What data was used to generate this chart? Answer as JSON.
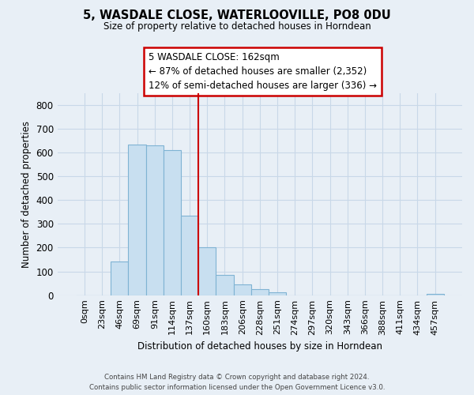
{
  "title": "5, WASDALE CLOSE, WATERLOOVILLE, PO8 0DU",
  "subtitle": "Size of property relative to detached houses in Horndean",
  "xlabel": "Distribution of detached houses by size in Horndean",
  "ylabel": "Number of detached properties",
  "bar_labels": [
    "0sqm",
    "23sqm",
    "46sqm",
    "69sqm",
    "91sqm",
    "114sqm",
    "137sqm",
    "160sqm",
    "183sqm",
    "206sqm",
    "228sqm",
    "251sqm",
    "274sqm",
    "297sqm",
    "320sqm",
    "343sqm",
    "366sqm",
    "388sqm",
    "411sqm",
    "434sqm",
    "457sqm"
  ],
  "bar_values": [
    0,
    0,
    143,
    634,
    631,
    609,
    333,
    200,
    84,
    46,
    27,
    12,
    0,
    0,
    0,
    0,
    0,
    0,
    0,
    0,
    4
  ],
  "bar_color": "#c8dff0",
  "bar_edge_color": "#7fb3d3",
  "vline_index": 7,
  "vline_color": "#cc0000",
  "ylim": [
    0,
    850
  ],
  "yticks": [
    0,
    100,
    200,
    300,
    400,
    500,
    600,
    700,
    800
  ],
  "annotation_title": "5 WASDALE CLOSE: 162sqm",
  "annotation_line1": "← 87% of detached houses are smaller (2,352)",
  "annotation_line2": "12% of semi-detached houses are larger (336) →",
  "annotation_box_color": "#ffffff",
  "annotation_box_edge": "#cc0000",
  "footer_line1": "Contains HM Land Registry data © Crown copyright and database right 2024.",
  "footer_line2": "Contains public sector information licensed under the Open Government Licence v3.0.",
  "background_color": "#e8eff6",
  "plot_background": "#e8eff6",
  "grid_color": "#c8d8e8"
}
